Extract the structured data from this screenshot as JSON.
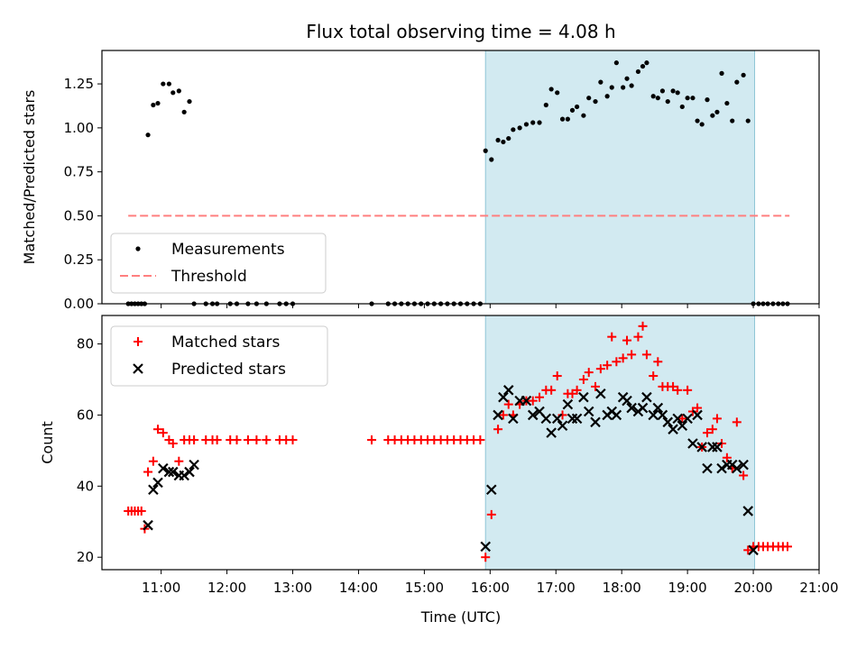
{
  "chart_data": {
    "title": "Flux total observing time = 4.08 h",
    "xlabel": "Time (UTC)",
    "x_unit": "hours UTC",
    "xlim": [
      10.1,
      21.0
    ],
    "x_ticks": [
      11,
      12,
      13,
      14,
      15,
      16,
      17,
      18,
      19,
      20,
      21
    ],
    "x_tick_labels": [
      "11:00",
      "12:00",
      "13:00",
      "14:00",
      "15:00",
      "16:00",
      "17:00",
      "18:00",
      "19:00",
      "20:00",
      "21:00"
    ],
    "shaded_region": {
      "x": [
        15.93,
        20.02
      ],
      "color": "#add8e6"
    },
    "panels": [
      {
        "type": "scatter",
        "ylabel": "Matched/Predicted stars",
        "ylim": [
          0,
          1.44
        ],
        "y_ticks": [
          0,
          0.25,
          0.5,
          0.75,
          1.0,
          1.25
        ],
        "y_tick_labels": [
          "0.00",
          "0.25",
          "0.50",
          "0.75",
          "1.00",
          "1.25"
        ],
        "legend_position": "lower-left",
        "series": [
          {
            "name": "Measurements",
            "marker": "dot",
            "color": "#000000",
            "x": [
              10.5,
              10.55,
              10.6,
              10.65,
              10.7,
              10.75,
              10.8,
              10.88,
              10.95,
              11.03,
              11.12,
              11.18,
              11.27,
              11.35,
              11.43,
              11.5,
              11.68,
              11.78,
              11.85,
              12.05,
              12.15,
              12.32,
              12.45,
              12.6,
              12.8,
              12.9,
              13.0,
              14.2,
              14.45,
              14.55,
              14.65,
              14.75,
              14.85,
              14.95,
              15.05,
              15.15,
              15.25,
              15.35,
              15.45,
              15.55,
              15.65,
              15.75,
              15.85,
              15.93,
              16.02,
              16.12,
              16.2,
              16.28,
              16.35,
              16.45,
              16.55,
              16.65,
              16.75,
              16.85,
              16.93,
              17.02,
              17.1,
              17.18,
              17.25,
              17.32,
              17.42,
              17.5,
              17.6,
              17.68,
              17.78,
              17.85,
              17.92,
              18.02,
              18.08,
              18.15,
              18.25,
              18.32,
              18.38,
              18.48,
              18.55,
              18.62,
              18.7,
              18.78,
              18.85,
              18.92,
              19.0,
              19.08,
              19.15,
              19.22,
              19.3,
              19.38,
              19.45,
              19.52,
              19.6,
              19.68,
              19.75,
              19.85,
              19.92,
              20.0,
              20.08,
              20.15,
              20.22,
              20.3,
              20.38,
              20.45,
              20.52
            ],
            "y": [
              0,
              0,
              0,
              0,
              0,
              0,
              0.96,
              1.13,
              1.14,
              1.25,
              1.25,
              1.2,
              1.21,
              1.09,
              1.15,
              0,
              0,
              0,
              0,
              0,
              0,
              0,
              0,
              0,
              0,
              0,
              0,
              0,
              0,
              0,
              0,
              0,
              0,
              0,
              0,
              0,
              0,
              0,
              0,
              0,
              0,
              0,
              0,
              0.87,
              0.82,
              0.93,
              0.92,
              0.94,
              0.99,
              1.0,
              1.02,
              1.03,
              1.03,
              1.13,
              1.22,
              1.2,
              1.05,
              1.05,
              1.1,
              1.12,
              1.07,
              1.17,
              1.15,
              1.26,
              1.18,
              1.23,
              1.37,
              1.23,
              1.28,
              1.24,
              1.32,
              1.35,
              1.37,
              1.18,
              1.17,
              1.21,
              1.15,
              1.21,
              1.2,
              1.12,
              1.17,
              1.17,
              1.04,
              1.02,
              1.16,
              1.07,
              1.09,
              1.31,
              1.14,
              1.04,
              1.26,
              1.3,
              1.04,
              0,
              0,
              0,
              0,
              0,
              0,
              0,
              0
            ]
          },
          {
            "name": "Threshold",
            "marker": "dashed-line",
            "color": "#ff7f7f",
            "x": [
              10.5,
              20.55
            ],
            "y": [
              0.5,
              0.5
            ]
          }
        ]
      },
      {
        "type": "scatter",
        "ylabel": "Count",
        "ylim": [
          16.5,
          88
        ],
        "y_ticks": [
          20,
          40,
          60,
          80
        ],
        "y_tick_labels": [
          "20",
          "40",
          "60",
          "80"
        ],
        "legend_position": "upper-left",
        "series": [
          {
            "name": "Matched stars",
            "marker": "plus",
            "color": "#ff0000",
            "x": [
              10.5,
              10.55,
              10.6,
              10.65,
              10.7,
              10.75,
              10.8,
              10.88,
              10.95,
              11.03,
              11.12,
              11.18,
              11.27,
              11.35,
              11.43,
              11.5,
              11.68,
              11.78,
              11.85,
              12.05,
              12.15,
              12.32,
              12.45,
              12.6,
              12.8,
              12.9,
              13.0,
              14.2,
              14.45,
              14.55,
              14.65,
              14.75,
              14.85,
              14.95,
              15.05,
              15.15,
              15.25,
              15.35,
              15.45,
              15.55,
              15.65,
              15.75,
              15.85,
              15.93,
              16.02,
              16.12,
              16.2,
              16.28,
              16.35,
              16.45,
              16.55,
              16.65,
              16.75,
              16.85,
              16.93,
              17.02,
              17.1,
              17.18,
              17.25,
              17.32,
              17.42,
              17.5,
              17.6,
              17.68,
              17.78,
              17.85,
              17.92,
              18.02,
              18.08,
              18.15,
              18.25,
              18.32,
              18.38,
              18.48,
              18.55,
              18.62,
              18.7,
              18.78,
              18.85,
              18.92,
              19.0,
              19.08,
              19.15,
              19.22,
              19.3,
              19.38,
              19.45,
              19.52,
              19.6,
              19.68,
              19.75,
              19.85,
              19.92,
              20.0,
              20.08,
              20.15,
              20.22,
              20.3,
              20.38,
              20.45,
              20.52
            ],
            "y": [
              33,
              33,
              33,
              33,
              33,
              28,
              44,
              47,
              56,
              55,
              53,
              52,
              47,
              53,
              53,
              53,
              53,
              53,
              53,
              53,
              53,
              53,
              53,
              53,
              53,
              53,
              53,
              53,
              53,
              53,
              53,
              53,
              53,
              53,
              53,
              53,
              53,
              53,
              53,
              53,
              53,
              53,
              53,
              20,
              32,
              56,
              60,
              63,
              60,
              63,
              64,
              64,
              65,
              67,
              67,
              71,
              60,
              66,
              66,
              67,
              70,
              72,
              68,
              73,
              74,
              82,
              75,
              76,
              81,
              77,
              82,
              85,
              77,
              71,
              75,
              68,
              68,
              68,
              67,
              59,
              67,
              61,
              62,
              51,
              55,
              56,
              59,
              52,
              48,
              45,
              58,
              43,
              22,
              23,
              23,
              23,
              23,
              23,
              23,
              23,
              23
            ]
          },
          {
            "name": "Predicted stars",
            "marker": "x",
            "color": "#000000",
            "x": [
              10.8,
              10.88,
              10.95,
              11.03,
              11.12,
              11.18,
              11.27,
              11.35,
              11.43,
              11.5,
              15.93,
              16.02,
              16.12,
              16.2,
              16.28,
              16.35,
              16.45,
              16.55,
              16.65,
              16.75,
              16.85,
              16.93,
              17.02,
              17.1,
              17.18,
              17.25,
              17.32,
              17.42,
              17.5,
              17.6,
              17.68,
              17.78,
              17.85,
              17.92,
              18.02,
              18.08,
              18.15,
              18.25,
              18.32,
              18.38,
              18.48,
              18.55,
              18.62,
              18.7,
              18.78,
              18.85,
              18.92,
              19.0,
              19.08,
              19.15,
              19.22,
              19.3,
              19.38,
              19.45,
              19.52,
              19.6,
              19.68,
              19.75,
              19.85,
              19.92,
              20.0
            ],
            "y": [
              29,
              39,
              41,
              45,
              44,
              44,
              43,
              43,
              44,
              46,
              23,
              39,
              60,
              65,
              67,
              59,
              64,
              64,
              60,
              61,
              59,
              55,
              59,
              57,
              63,
              59,
              59,
              65,
              61,
              58,
              66,
              60,
              61,
              60,
              65,
              64,
              62,
              61,
              62,
              65,
              60,
              62,
              60,
              58,
              56,
              59,
              57,
              59,
              52,
              60,
              51,
              45,
              51,
              51,
              45,
              46,
              46,
              45,
              46,
              33,
              22
            ]
          }
        ]
      }
    ]
  }
}
